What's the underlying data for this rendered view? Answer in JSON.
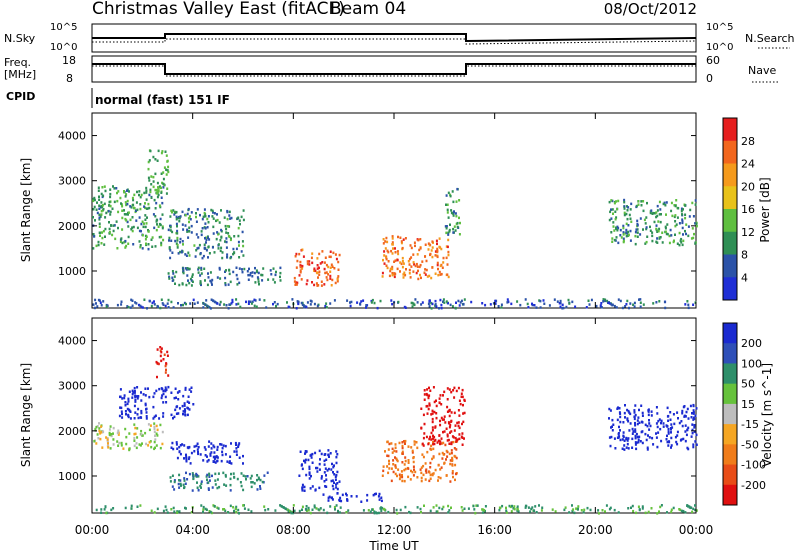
{
  "header": {
    "title": "Christmas Valley East (fitACF)",
    "beam": "Beam 04",
    "date": "08/Oct/2012"
  },
  "top_panels": {
    "nsky_label": "N.Sky",
    "nsky_ticks": [
      "10^5",
      "10^0"
    ],
    "nsearch_label": "N.Search",
    "nsearch_ticks": [
      "10^5",
      "10^0"
    ],
    "freq_label_1": "Freq.",
    "freq_label_2": "[MHz]",
    "freq_ticks": [
      "18",
      "8"
    ],
    "nave_label": "Nave",
    "nave_ticks": [
      "60",
      "0"
    ],
    "cpid_label": "CPID",
    "cpid_value": "normal (fast) 151 IF"
  },
  "colors": {
    "power_scale": [
      "#1f2fd6",
      "#2b53a8",
      "#2f8f55",
      "#5fbf3f",
      "#e8c21a",
      "#f59a1c",
      "#f2661d",
      "#e61e1e"
    ],
    "velocity_scale": [
      "#1a2ad0",
      "#2e4fb8",
      "#2e8f6a",
      "#66c23c",
      "#bdbdbd",
      "#f5a623",
      "#f07c1a",
      "#e84c17",
      "#e01010"
    ]
  },
  "chart_data": [
    {
      "type": "heatmap",
      "title": "Power",
      "ylabel": "Slant Range [km]",
      "xlabel": "",
      "x_ticks": [
        "00:00",
        "04:00",
        "08:00",
        "12:00",
        "16:00",
        "20:00",
        "00:00"
      ],
      "y_ticks": [
        "1000",
        "2000",
        "3000",
        "4000"
      ],
      "ylim": [
        180,
        4500
      ],
      "xlim_hours": [
        0,
        24
      ],
      "colorbar": {
        "label": "Power [dB]",
        "ticks": [
          "4",
          "8",
          "12",
          "16",
          "20",
          "24",
          "28"
        ],
        "range": [
          0,
          32
        ]
      },
      "regions": [
        {
          "t0": 0.0,
          "t1": 2.8,
          "r0": 1500,
          "r1": 2900,
          "level": 11
        },
        {
          "t0": 2.2,
          "t1": 3.0,
          "r0": 2700,
          "r1": 3700,
          "level": 12
        },
        {
          "t0": 3.0,
          "t1": 6.0,
          "r0": 1300,
          "r1": 2400,
          "level": 9
        },
        {
          "t0": 3.0,
          "t1": 7.5,
          "r0": 700,
          "r1": 1100,
          "level": 8
        },
        {
          "t0": 8.0,
          "t1": 9.8,
          "r0": 700,
          "r1": 1500,
          "level": 27
        },
        {
          "t0": 11.5,
          "t1": 14.2,
          "r0": 850,
          "r1": 1800,
          "level": 25
        },
        {
          "t0": 14.0,
          "t1": 14.6,
          "r0": 1700,
          "r1": 2900,
          "level": 10
        },
        {
          "t0": 20.5,
          "t1": 24.0,
          "r0": 1600,
          "r1": 2600,
          "level": 10
        },
        {
          "t0": 0.0,
          "t1": 24.0,
          "r0": 200,
          "r1": 400,
          "level": 6
        }
      ]
    },
    {
      "type": "heatmap",
      "title": "Velocity",
      "ylabel": "Slant Range [km]",
      "xlabel": "Time UT",
      "x_ticks": [
        "00:00",
        "04:00",
        "08:00",
        "12:00",
        "16:00",
        "20:00",
        "00:00"
      ],
      "y_ticks": [
        "1000",
        "2000",
        "3000",
        "4000"
      ],
      "ylim": [
        180,
        4500
      ],
      "xlim_hours": [
        0,
        24
      ],
      "colorbar": {
        "label": "Velocity [m s^-1]",
        "ticks": [
          "200",
          "100",
          "50",
          "15",
          "-15",
          "-50",
          "-100",
          "-200"
        ],
        "range": [
          -250,
          250
        ]
      },
      "regions": [
        {
          "t0": 0.0,
          "t1": 2.8,
          "r0": 1600,
          "r1": 2200,
          "level": 0
        },
        {
          "t0": 1.0,
          "t1": 4.0,
          "r0": 2300,
          "r1": 3000,
          "level": 220
        },
        {
          "t0": 2.5,
          "t1": 3.0,
          "r0": 3200,
          "r1": 3900,
          "level": -150
        },
        {
          "t0": 3.0,
          "t1": 6.0,
          "r0": 1300,
          "r1": 1800,
          "level": 210
        },
        {
          "t0": 3.0,
          "t1": 7.0,
          "r0": 700,
          "r1": 1100,
          "level": 60
        },
        {
          "t0": 8.2,
          "t1": 9.8,
          "r0": 700,
          "r1": 1600,
          "level": 180
        },
        {
          "t0": 11.5,
          "t1": 14.5,
          "r0": 900,
          "r1": 1800,
          "level": -90
        },
        {
          "t0": 13.0,
          "t1": 14.8,
          "r0": 1700,
          "r1": 3000,
          "level": -200
        },
        {
          "t0": 9.0,
          "t1": 11.5,
          "r0": 450,
          "r1": 650,
          "level": 230
        },
        {
          "t0": 20.5,
          "t1": 24.0,
          "r0": 1600,
          "r1": 2600,
          "level": 220
        },
        {
          "t0": 0.0,
          "t1": 24.0,
          "r0": 200,
          "r1": 380,
          "level": 40
        }
      ]
    }
  ]
}
